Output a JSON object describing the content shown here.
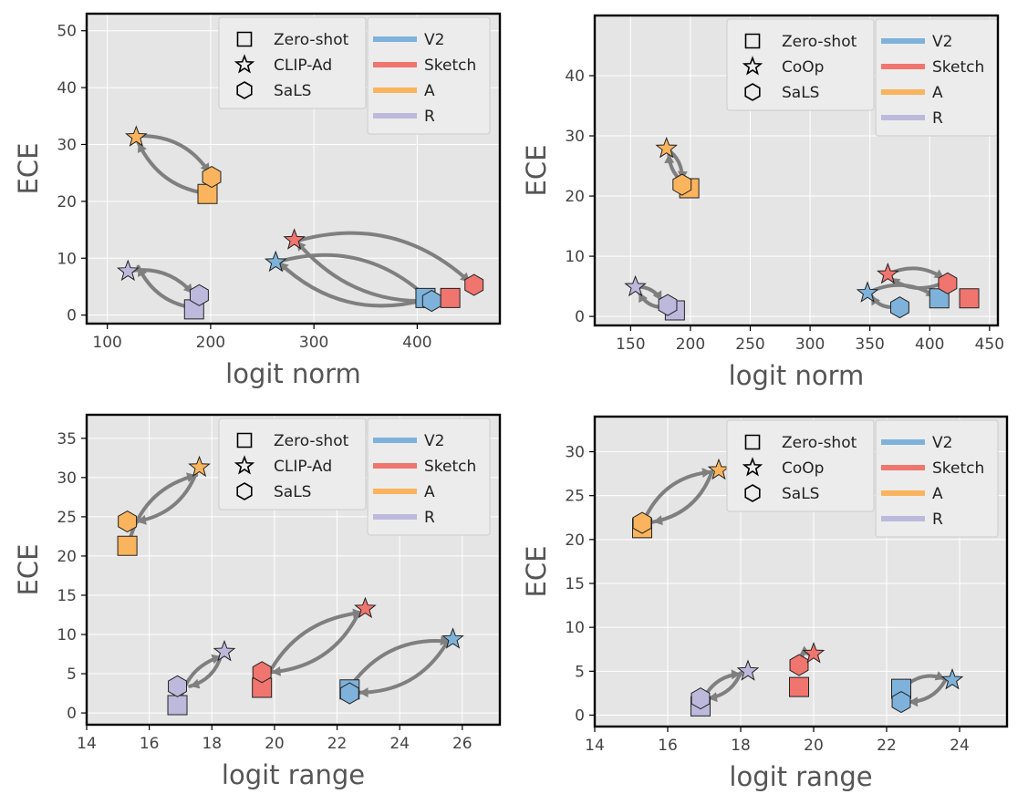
{
  "colors": {
    "V2": "#7eb2da",
    "Sketch": "#f0756e",
    "A": "#f9b45d",
    "R": "#bcb9dc",
    "arrow": "#7f7f7f",
    "panel_bg": "#e5e5e5",
    "grid": "#ffffff"
  },
  "chart_data": [
    {
      "type": "scatter",
      "xlabel": "logit norm",
      "ylabel": "ECE",
      "xlim": [
        80,
        480
      ],
      "ylim": [
        -1.5,
        53
      ],
      "xticks": [
        100,
        200,
        300,
        400
      ],
      "yticks": [
        0,
        10,
        20,
        30,
        40,
        50
      ],
      "legend_markers": [
        "Zero-shot",
        "CLIP-Ad",
        "SaLS"
      ],
      "legend_colors": [
        "V2",
        "Sketch",
        "A",
        "R"
      ],
      "series": [
        {
          "name": "V2",
          "zero_shot": [
            408,
            3.0
          ],
          "tuned": [
            263,
            9.3
          ],
          "sals": [
            414,
            2.5
          ]
        },
        {
          "name": "Sketch",
          "zero_shot": [
            432,
            3.0
          ],
          "tuned": [
            281,
            13.2
          ],
          "sals": [
            455,
            5.3
          ]
        },
        {
          "name": "A",
          "zero_shot": [
            197,
            21.3
          ],
          "tuned": [
            128,
            31.3
          ],
          "sals": [
            201,
            24.3
          ]
        },
        {
          "name": "R",
          "zero_shot": [
            184,
            1.0
          ],
          "tuned": [
            120,
            7.7
          ],
          "sals": [
            189,
            3.5
          ]
        }
      ],
      "arrows": [
        {
          "from": [
            187,
            1.2
          ],
          "to": [
            130,
            8.5
          ],
          "bend": "down"
        },
        {
          "from": [
            120,
            7.7
          ],
          "to": [
            183,
            3.8
          ],
          "bend": "up"
        },
        {
          "from": [
            200,
            21.3
          ],
          "to": [
            130,
            30.3
          ],
          "bend": "down"
        },
        {
          "from": [
            130,
            31.5
          ],
          "to": [
            199,
            25.0
          ],
          "bend": "up"
        },
        {
          "from": [
            408,
            2.7
          ],
          "to": [
            266,
            9.3
          ],
          "bend": "down"
        },
        {
          "from": [
            266,
            9.4
          ],
          "to": [
            410,
            3.0
          ],
          "bend": "up"
        },
        {
          "from": [
            432,
            2.9
          ],
          "to": [
            283,
            13.0
          ],
          "bend": "down"
        },
        {
          "from": [
            283,
            13.0
          ],
          "to": [
            451,
            5.8
          ],
          "bend": "up"
        }
      ]
    },
    {
      "type": "scatter",
      "xlabel": "logit norm",
      "ylabel": "ECE",
      "xlim": [
        120,
        457
      ],
      "ylim": [
        -1.5,
        50
      ],
      "xticks": [
        150,
        200,
        250,
        300,
        350,
        400,
        450
      ],
      "yticks": [
        0,
        10,
        20,
        30,
        40
      ],
      "legend_markers": [
        "Zero-shot",
        "CoOp",
        "SaLS"
      ],
      "legend_colors": [
        "V2",
        "Sketch",
        "A",
        "R"
      ],
      "series": [
        {
          "name": "V2",
          "zero_shot": [
            408,
            3.0
          ],
          "tuned": [
            348,
            3.9
          ],
          "sals": [
            375,
            1.5
          ]
        },
        {
          "name": "Sketch",
          "zero_shot": [
            433,
            3.0
          ],
          "tuned": [
            365,
            7.0
          ],
          "sals": [
            415,
            5.5
          ]
        },
        {
          "name": "A",
          "zero_shot": [
            199,
            21.3
          ],
          "tuned": [
            180,
            27.9
          ],
          "sals": [
            193,
            21.9
          ]
        },
        {
          "name": "R",
          "zero_shot": [
            187,
            1.0
          ],
          "tuned": [
            154,
            4.9
          ],
          "sals": [
            181,
            1.9
          ]
        }
      ],
      "arrows": [
        {
          "from": [
            178,
            1.5
          ],
          "to": [
            157,
            4.0
          ],
          "bend": "down"
        },
        {
          "from": [
            154,
            4.9
          ],
          "to": [
            176,
            2.6
          ],
          "bend": "up"
        },
        {
          "from": [
            198,
            21.8
          ],
          "to": [
            182,
            27.0
          ],
          "bend": "down"
        },
        {
          "from": [
            180,
            27.9
          ],
          "to": [
            193,
            22.6
          ],
          "bend": "up"
        },
        {
          "from": [
            372,
            1.6
          ],
          "to": [
            351,
            3.5
          ],
          "bend": "down"
        },
        {
          "from": [
            348,
            3.9
          ],
          "to": [
            405,
            3.3
          ],
          "bend": "up"
        },
        {
          "from": [
            410,
            5.5
          ],
          "to": [
            367,
            6.4
          ],
          "bend": "down"
        },
        {
          "from": [
            365,
            7.0
          ],
          "to": [
            412,
            6.3
          ],
          "bend": "up"
        }
      ]
    },
    {
      "type": "scatter",
      "xlabel": "logit range",
      "ylabel": "ECE",
      "xlim": [
        14,
        27.2
      ],
      "ylim": [
        -1.5,
        38
      ],
      "xticks": [
        14,
        16,
        18,
        20,
        22,
        24,
        26
      ],
      "yticks": [
        0,
        5,
        10,
        15,
        20,
        25,
        30,
        35
      ],
      "legend_markers": [
        "Zero-shot",
        "CLIP-Ad",
        "SaLS"
      ],
      "legend_colors": [
        "V2",
        "Sketch",
        "A",
        "R"
      ],
      "series": [
        {
          "name": "V2",
          "zero_shot": [
            22.4,
            3.0
          ],
          "tuned": [
            25.7,
            9.4
          ],
          "sals": [
            22.4,
            2.5
          ]
        },
        {
          "name": "Sketch",
          "zero_shot": [
            19.6,
            3.2
          ],
          "tuned": [
            22.9,
            13.3
          ],
          "sals": [
            19.6,
            5.2
          ]
        },
        {
          "name": "A",
          "zero_shot": [
            15.3,
            21.3
          ],
          "tuned": [
            17.6,
            31.3
          ],
          "sals": [
            15.3,
            24.4
          ]
        },
        {
          "name": "R",
          "zero_shot": [
            16.9,
            1.0
          ],
          "tuned": [
            18.4,
            7.8
          ],
          "sals": [
            16.9,
            3.4
          ]
        }
      ],
      "arrows": [
        {
          "from": [
            15.4,
            22.4
          ],
          "to": [
            17.5,
            30.3
          ],
          "bend": "up"
        },
        {
          "from": [
            17.5,
            30.6
          ],
          "to": [
            15.6,
            24.4
          ],
          "bend": "down"
        },
        {
          "from": [
            17.0,
            1.8
          ],
          "to": [
            18.3,
            7.2
          ],
          "bend": "up"
        },
        {
          "from": [
            18.3,
            7.4
          ],
          "to": [
            17.3,
            3.4
          ],
          "bend": "down"
        },
        {
          "from": [
            19.7,
            4.1
          ],
          "to": [
            22.8,
            12.8
          ],
          "bend": "up"
        },
        {
          "from": [
            22.7,
            12.8
          ],
          "to": [
            19.9,
            5.2
          ],
          "bend": "down"
        },
        {
          "from": [
            22.5,
            3.8
          ],
          "to": [
            25.6,
            9.1
          ],
          "bend": "up"
        },
        {
          "from": [
            25.5,
            8.9
          ],
          "to": [
            22.7,
            2.6
          ],
          "bend": "down"
        }
      ]
    },
    {
      "type": "scatter",
      "xlabel": "logit range",
      "ylabel": "ECE",
      "xlim": [
        14,
        25.3
      ],
      "ylim": [
        -1.3,
        34
      ],
      "xticks": [
        14,
        16,
        18,
        20,
        22,
        24
      ],
      "yticks": [
        0,
        5,
        10,
        15,
        20,
        25,
        30
      ],
      "legend_markers": [
        "Zero-shot",
        "CoOp",
        "SaLS"
      ],
      "legend_colors": [
        "V2",
        "Sketch",
        "A",
        "R"
      ],
      "series": [
        {
          "name": "V2",
          "zero_shot": [
            22.4,
            3.0
          ],
          "tuned": [
            23.8,
            4.0
          ],
          "sals": [
            22.4,
            1.5
          ]
        },
        {
          "name": "Sketch",
          "zero_shot": [
            19.6,
            3.2
          ],
          "tuned": [
            20.0,
            7.0
          ],
          "sals": [
            19.6,
            5.7
          ]
        },
        {
          "name": "A",
          "zero_shot": [
            15.3,
            21.3
          ],
          "tuned": [
            17.4,
            27.9
          ],
          "sals": [
            15.3,
            21.9
          ]
        },
        {
          "name": "R",
          "zero_shot": [
            16.9,
            1.0
          ],
          "tuned": [
            18.2,
            5.0
          ],
          "sals": [
            16.9,
            1.9
          ]
        }
      ],
      "arrows": [
        {
          "from": [
            15.4,
            22.6
          ],
          "to": [
            17.2,
            27.7
          ],
          "bend": "up"
        },
        {
          "from": [
            17.2,
            27.6
          ],
          "to": [
            15.6,
            22.0
          ],
          "bend": "down"
        },
        {
          "from": [
            17.0,
            2.0
          ],
          "to": [
            18.0,
            4.7
          ],
          "bend": "up"
        },
        {
          "from": [
            18.0,
            4.8
          ],
          "to": [
            17.1,
            1.9
          ],
          "bend": "down"
        },
        {
          "from": [
            19.7,
            6.3
          ],
          "to": [
            19.9,
            6.9
          ],
          "bend": "up"
        },
        {
          "from": [
            22.6,
            3.6
          ],
          "to": [
            23.6,
            4.1
          ],
          "bend": "up"
        },
        {
          "from": [
            23.6,
            3.9
          ],
          "to": [
            22.6,
            1.5
          ],
          "bend": "down"
        }
      ]
    }
  ]
}
